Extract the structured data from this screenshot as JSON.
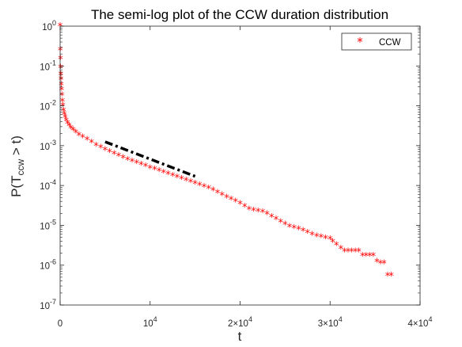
{
  "chart_data": {
    "type": "scatter",
    "title": "The semi-log plot of the CCW duration distribution",
    "xlabel": "t",
    "ylabel": "P(T_ccw > t)",
    "ylabel_parts": {
      "prefix": "P(T",
      "subscript": "ccw",
      "suffix": " > t)"
    },
    "xscale": "linear",
    "yscale": "log",
    "xlim": [
      0,
      40000
    ],
    "ylim": [
      1e-07,
      1
    ],
    "grid": false,
    "legend_position": "top-right",
    "x_ticks": [
      {
        "value": 0,
        "label": "0",
        "exp": ""
      },
      {
        "value": 10000,
        "label": "10",
        "exp": "4"
      },
      {
        "value": 20000,
        "label": "2×10",
        "exp": "4"
      },
      {
        "value": 30000,
        "label": "3×10",
        "exp": "4"
      },
      {
        "value": 40000,
        "label": "4×10",
        "exp": "4"
      }
    ],
    "y_ticks": [
      {
        "value": 1e-07,
        "label": "10",
        "exp": "-7"
      },
      {
        "value": 1e-06,
        "label": "10",
        "exp": "-6"
      },
      {
        "value": 1e-05,
        "label": "10",
        "exp": "-5"
      },
      {
        "value": 0.0001,
        "label": "10",
        "exp": "-4"
      },
      {
        "value": 0.001,
        "label": "10",
        "exp": "-3"
      },
      {
        "value": 0.01,
        "label": "10",
        "exp": "-2"
      },
      {
        "value": 0.1,
        "label": "10",
        "exp": "-1"
      },
      {
        "value": 1,
        "label": "10",
        "exp": "0"
      }
    ],
    "series": [
      {
        "name": "CCW",
        "marker": "*",
        "color": "#ff0000",
        "x": [
          0,
          20,
          40,
          60,
          80,
          100,
          130,
          160,
          200,
          250,
          300,
          380,
          460,
          560,
          680,
          820,
          1000,
          1200,
          1450,
          1750,
          2100,
          2500,
          3000,
          3500,
          4000,
          4500,
          5000,
          5500,
          6000,
          6500,
          7000,
          7500,
          8000,
          8500,
          9000,
          9500,
          10000,
          10500,
          11000,
          11500,
          12000,
          12500,
          13000,
          13500,
          14000,
          14500,
          15000,
          15500,
          16000,
          16500,
          17000,
          17500,
          18000,
          18500,
          19000,
          19500,
          20000,
          20500,
          21000,
          21500,
          22000,
          22500,
          23000,
          23500,
          24000,
          24500,
          25000,
          25500,
          26000,
          26500,
          27000,
          27500,
          28000,
          28500,
          29000,
          29500,
          30000,
          30300,
          30700,
          31200,
          31600,
          32000,
          32400,
          32800,
          33200,
          33600,
          34000,
          34400,
          34800,
          35200,
          35600,
          36000,
          36400,
          36800
        ],
        "y": [
          1.0,
          0.25,
          0.15,
          0.09,
          0.06,
          0.045,
          0.033,
          0.025,
          0.018,
          0.013,
          0.01,
          0.0075,
          0.006,
          0.005,
          0.0042,
          0.0036,
          0.0031,
          0.0027,
          0.0024,
          0.0021,
          0.0018,
          0.0016,
          0.0014,
          0.0012,
          0.001,
          0.00088,
          0.00078,
          0.00069,
          0.00061,
          0.00055,
          0.00049,
          0.00044,
          0.0004,
          0.00036,
          0.00033,
          0.0003,
          0.00027,
          0.00025,
          0.00023,
          0.00021,
          0.00019,
          0.000175,
          0.00016,
          0.000145,
          0.000132,
          0.00012,
          0.00011,
          0.0001,
          9.2e-05,
          8.3e-05,
          7.4e-05,
          6.5e-05,
          5.7e-05,
          5e-05,
          4.4e-05,
          3.9e-05,
          3.4e-05,
          2.9e-05,
          2.5e-05,
          2.3e-05,
          2.2e-05,
          2.1e-05,
          1.9e-05,
          1.6e-05,
          1.4e-05,
          1.2e-05,
          1.05e-05,
          9e-06,
          8.5e-06,
          8e-06,
          7.2e-06,
          6.5e-06,
          5.8e-06,
          5.3e-06,
          5e-06,
          4.7e-06,
          4.5e-06,
          3.8e-06,
          3.2e-06,
          2.6e-06,
          2.2e-06,
          2.2e-06,
          2.2e-06,
          2.2e-06,
          2.2e-06,
          1.7e-06,
          1.7e-06,
          1.7e-06,
          1.7e-06,
          1.2e-06,
          1.1e-06,
          1.1e-06,
          5.5e-07,
          5.5e-07
        ]
      }
    ],
    "reference_line": {
      "style": "dash-dot",
      "color": "#000000",
      "x": [
        5000,
        15000
      ],
      "y": [
        0.00125,
        0.00017
      ]
    }
  }
}
